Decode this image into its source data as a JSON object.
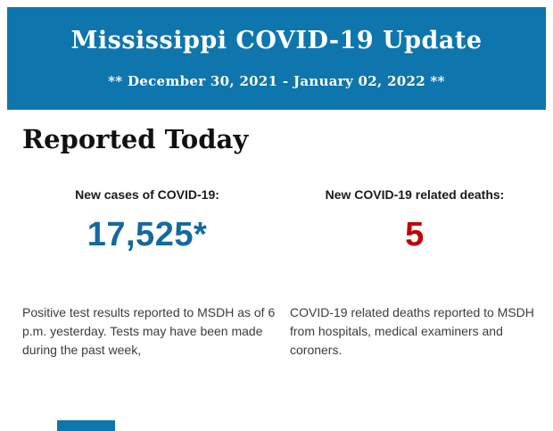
{
  "header": {
    "title": "Mississippi COVID-19 Update",
    "subtitle": "** December 30, 2021 - January 02, 2022 **",
    "background_color": "#0e76ad",
    "text_color": "#ffffff"
  },
  "main": {
    "section_title": "Reported Today",
    "stats": [
      {
        "label": "New cases of COVID-19:",
        "value": "17,525*",
        "value_color": "#14699f",
        "description": "Positive test results reported to MSDH as of 6 p.m. yesterday. Tests may have been made during the past week,"
      },
      {
        "label": "New COVID-19 related deaths:",
        "value": "5",
        "value_color": "#c00000",
        "description": "COVID-19 related deaths reported to MSDH from hospitals, medical examiners and coroners."
      }
    ]
  },
  "footer": {
    "partial_element_color": "#0e76ad"
  }
}
